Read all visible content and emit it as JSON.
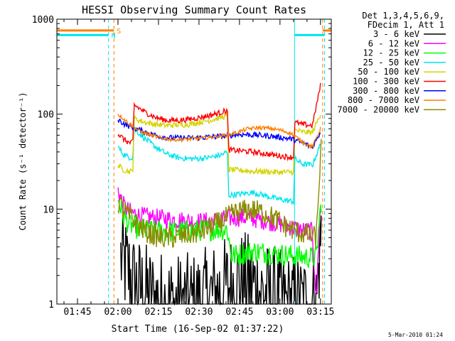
{
  "chart_data": {
    "type": "line",
    "title": "HESSI Observing Summary Count Rates",
    "xlabel": "Start Time (16-Sep-02 01:37:22)",
    "ylabel": "Count Rate (s⁻¹ detector⁻¹)",
    "y_scale": "log",
    "ylim": [
      1,
      1000
    ],
    "xlim_minutes": [
      97.37,
      199.0
    ],
    "x_tick_labels": [
      "01:45",
      "02:00",
      "02:15",
      "02:30",
      "02:45",
      "03:00",
      "03:15"
    ],
    "x_tick_minutes": [
      105,
      120,
      135,
      150,
      165,
      180,
      195
    ],
    "y_tick_labels": [
      "1",
      "10",
      "100",
      "1000"
    ],
    "y_tick_values": [
      1,
      10,
      100,
      1000
    ],
    "legend_header": [
      "Det 1,3,4,5,6,9,",
      "FDecim 1, Att 1"
    ],
    "legend_position": "right",
    "flags": [
      {
        "label": "S",
        "color": "#ff7f00",
        "y": 760,
        "segments": [
          [
            97.37,
            118.5
          ],
          [
            195.8,
            199.0
          ]
        ],
        "edges": [
          118.5,
          195.8
        ]
      },
      {
        "label": "N",
        "color": "#00e5ee",
        "y": 680,
        "segments": [
          [
            97.37,
            116.5
          ],
          [
            185.4,
            196.5
          ]
        ],
        "edges": [
          116.5,
          196.5
        ]
      }
    ],
    "series": [
      {
        "name": "3 - 6 keV",
        "color": "#000000",
        "x": [
          121,
          123,
          126,
          130,
          134,
          138,
          142,
          146,
          150,
          154,
          158,
          162,
          166,
          170,
          174,
          178,
          182,
          186,
          190,
          193.5,
          194.5,
          195.3
        ],
        "y": [
          3.0,
          2.4,
          1.6,
          1.3,
          1.1,
          1.05,
          1.0,
          1.0,
          1.05,
          1.2,
          1.4,
          1.6,
          1.7,
          1.6,
          1.3,
          1.2,
          1.0,
          1.0,
          1.0,
          1.0,
          3.0,
          6.0
        ]
      },
      {
        "name": "6 - 12 keV",
        "color": "#ff00ff",
        "x": [
          120,
          122,
          124,
          128,
          132,
          136,
          140,
          144,
          148,
          152,
          156,
          160,
          164,
          168,
          172,
          176,
          180,
          184,
          188,
          192,
          193.5,
          194.2,
          195.0
        ],
        "y": [
          16,
          11,
          9.5,
          8.5,
          8.2,
          8.0,
          7.8,
          7.6,
          7.4,
          7.4,
          7.6,
          7.9,
          8.2,
          8.1,
          7.8,
          7.4,
          7.0,
          6.5,
          6.0,
          5.8,
          1.0,
          4.0,
          10
        ]
      },
      {
        "name": "12 - 25 keV",
        "color": "#00ff00",
        "x": [
          120,
          122,
          124,
          126,
          130,
          134,
          138,
          142,
          146,
          150,
          154,
          158,
          160.5,
          162,
          166,
          170,
          174,
          178,
          182,
          186,
          190,
          193.5,
          194.5,
          195.3
        ],
        "y": [
          13,
          8.5,
          7.0,
          6.5,
          6.0,
          5.9,
          5.8,
          5.8,
          5.9,
          6.0,
          6.1,
          6.1,
          6.1,
          3.2,
          3.4,
          3.6,
          3.5,
          3.4,
          3.3,
          3.2,
          3.1,
          3.1,
          7.0,
          12
        ]
      },
      {
        "name": "25 - 50 keV",
        "color": "#00e5ee",
        "x": [
          120,
          122,
          124,
          125.5,
          126,
          130,
          134,
          138,
          142,
          146,
          150,
          154,
          158,
          160.5,
          161,
          166,
          170,
          174,
          178,
          181,
          185,
          185.5,
          188,
          192,
          195.0
        ],
        "y": [
          45,
          38,
          35,
          35,
          70,
          55,
          45,
          38,
          35,
          34,
          34,
          35,
          37,
          40,
          14,
          14.5,
          15,
          14,
          13,
          12.5,
          12.0,
          34,
          30,
          29,
          48
        ]
      },
      {
        "name": "50 - 100 keV",
        "color": "#d4d400",
        "x": [
          120,
          122,
          124,
          125.5,
          126,
          130,
          134,
          138,
          142,
          146,
          150,
          154,
          158,
          160.5,
          161,
          166,
          170,
          174,
          178,
          181,
          185,
          185.5,
          188,
          192,
          195.0
        ],
        "y": [
          29,
          26,
          25,
          25,
          90,
          82,
          78,
          76,
          77,
          78,
          82,
          86,
          92,
          97,
          26,
          25.5,
          25,
          25,
          24.5,
          24.5,
          24.5,
          68,
          65,
          64,
          100
        ]
      },
      {
        "name": "100 - 300 keV",
        "color": "#ff0000",
        "x": [
          120,
          122,
          124,
          125.5,
          126,
          130,
          134,
          138,
          142,
          146,
          150,
          154,
          158,
          160.5,
          161,
          166,
          170,
          174,
          178,
          181,
          185,
          185.5,
          188,
          192,
          195.0
        ],
        "y": [
          62,
          55,
          50,
          50,
          125,
          105,
          92,
          86,
          86,
          88,
          92,
          97,
          104,
          110,
          42,
          41,
          40,
          38.5,
          37,
          36,
          35,
          82,
          78,
          76,
          200
        ]
      },
      {
        "name": "300 - 800 keV",
        "color": "#0000ff",
        "x": [
          120,
          122,
          124,
          128,
          132,
          136,
          140,
          144,
          148,
          152,
          156,
          160,
          164,
          168,
          172,
          176,
          180,
          184,
          188,
          192,
          195.0
        ],
        "y": [
          88,
          80,
          75,
          68,
          62,
          58,
          56,
          56,
          56,
          57,
          58,
          59,
          61,
          61,
          60,
          59,
          57,
          55,
          50,
          45,
          65
        ]
      },
      {
        "name": "800 - 7000 keV",
        "color": "#ff7f00",
        "x": [
          120,
          122,
          124,
          128,
          132,
          136,
          140,
          144,
          148,
          152,
          156,
          160,
          164,
          168,
          172,
          176,
          180,
          184,
          188,
          192,
          195.0
        ],
        "y": [
          100,
          90,
          80,
          66,
          60,
          56,
          54,
          54,
          55,
          56,
          58,
          60,
          64,
          70,
          72,
          71,
          68,
          63,
          52,
          45,
          70
        ]
      },
      {
        "name": "7000 - 20000 keV",
        "color": "#8b8b00",
        "x": [
          120,
          122,
          124,
          128,
          132,
          136,
          140,
          144,
          148,
          152,
          156,
          160,
          163,
          166,
          170,
          174,
          178,
          182,
          186,
          190,
          193.5,
          194.5,
          195.3
        ],
        "y": [
          12,
          10,
          8.5,
          6.5,
          5.5,
          5.0,
          5.0,
          5.2,
          5.5,
          6.0,
          6.8,
          8.0,
          9.0,
          9.6,
          9.8,
          9.2,
          8.0,
          6.6,
          5.8,
          5.4,
          5.0,
          20,
          45
        ]
      }
    ]
  },
  "footer_timestamp": "5-Mar-2010 01:24"
}
